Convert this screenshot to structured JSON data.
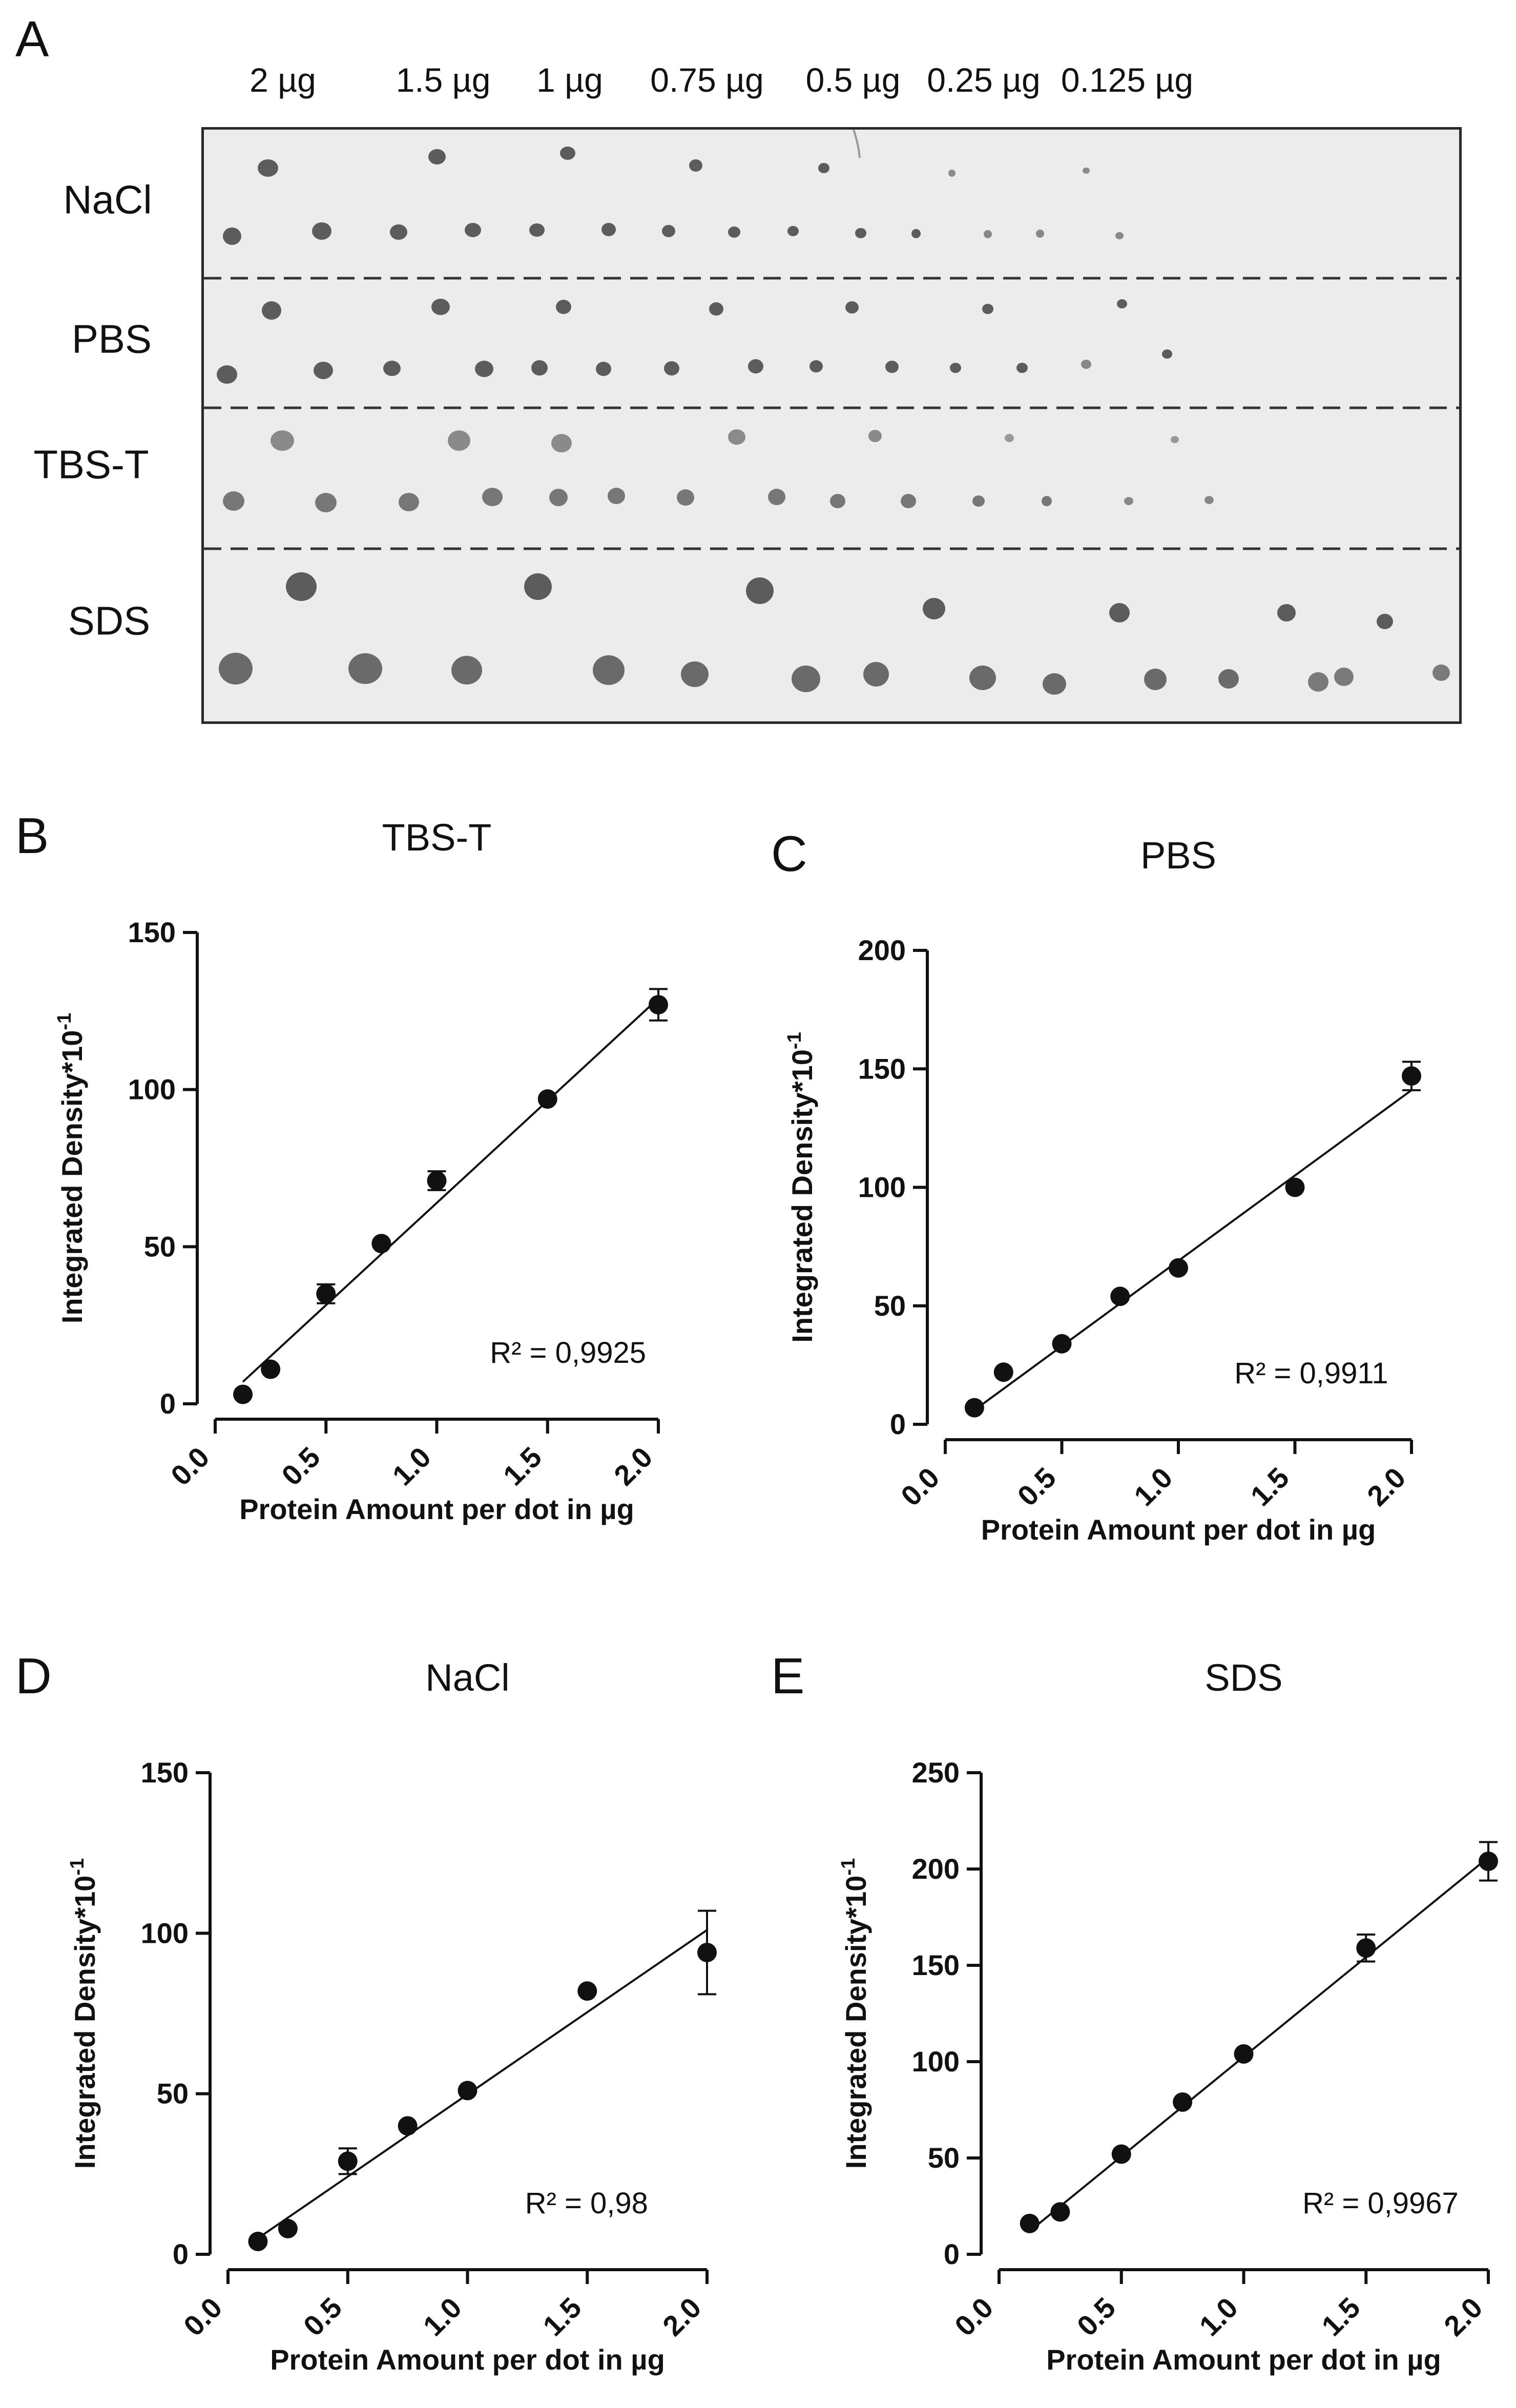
{
  "blot": {
    "panel": "A",
    "amounts": [
      "2 µg",
      "1.5 µg",
      "1 µg",
      "0.75 µg",
      "0.5 µg",
      "0.25 µg",
      "0.125 µg"
    ],
    "rows": [
      "NaCl",
      "PBS",
      "TBS-T",
      "SDS"
    ],
    "colors": {
      "background": "#ececec",
      "dot": "#5a5a5a",
      "divider": "#333333"
    }
  },
  "chart_data": [
    {
      "type": "scatter",
      "panel": "B",
      "title": "TBS-T",
      "xlabel": "Protein Amount per dot in µg",
      "ylabel": "Integrated Density*10",
      "ylabel_sup": "-1",
      "xlim": [
        0,
        2
      ],
      "ylim": [
        0,
        150
      ],
      "xticks": [
        "0.0",
        "0.5",
        "1.0",
        "1.5",
        "2.0"
      ],
      "yticks": [
        "0",
        "50",
        "100",
        "150"
      ],
      "x": [
        0.125,
        0.25,
        0.5,
        0.75,
        1.0,
        1.5,
        2.0
      ],
      "y": [
        3,
        11,
        35,
        51,
        71,
        97,
        127
      ],
      "error": [
        0,
        0,
        3,
        0,
        3,
        0,
        5
      ],
      "fit": {
        "x": [
          0.125,
          2.0
        ],
        "y": [
          7,
          129
        ]
      },
      "annotation": "R² = 0,9925"
    },
    {
      "type": "scatter",
      "panel": "C",
      "title": "PBS",
      "xlabel": "Protein Amount per dot in µg",
      "ylabel": "Integrated Density*10",
      "ylabel_sup": "-1",
      "xlim": [
        0,
        2
      ],
      "ylim": [
        0,
        200
      ],
      "xticks": [
        "0.0",
        "0.5",
        "1.0",
        "1.5",
        "2.0"
      ],
      "yticks": [
        "0",
        "50",
        "100",
        "150",
        "200"
      ],
      "x": [
        0.125,
        0.25,
        0.5,
        0.75,
        1.0,
        1.5,
        2.0
      ],
      "y": [
        7,
        22,
        34,
        54,
        66,
        100,
        147
      ],
      "error": [
        0,
        0,
        0,
        0,
        0,
        0,
        6
      ],
      "fit": {
        "x": [
          0.125,
          2.0
        ],
        "y": [
          6,
          141
        ]
      },
      "annotation": "R² = 0,9911"
    },
    {
      "type": "scatter",
      "panel": "D",
      "title": "NaCl",
      "xlabel": "Protein Amount per dot in µg",
      "ylabel": "Integrated Density*10",
      "ylabel_sup": "-1",
      "xlim": [
        0,
        2
      ],
      "ylim": [
        0,
        150
      ],
      "xticks": [
        "0.0",
        "0.5",
        "1.0",
        "1.5",
        "2.0"
      ],
      "yticks": [
        "0",
        "50",
        "100",
        "150"
      ],
      "x": [
        0.125,
        0.25,
        0.5,
        0.75,
        1.0,
        1.5,
        2.0
      ],
      "y": [
        4,
        8,
        29,
        40,
        51,
        82,
        94
      ],
      "error": [
        0,
        0,
        4,
        0,
        0,
        0,
        13
      ],
      "fit": {
        "x": [
          0.125,
          2.0
        ],
        "y": [
          5,
          101
        ]
      },
      "annotation": "R² = 0,98"
    },
    {
      "type": "scatter",
      "panel": "E",
      "title": "SDS",
      "xlabel": "Protein Amount per dot in µg",
      "ylabel": "Integrated Density*10",
      "ylabel_sup": "-1",
      "xlim": [
        0,
        2
      ],
      "ylim": [
        0,
        250
      ],
      "xticks": [
        "0.0",
        "0.5",
        "1.0",
        "1.5",
        "2.0"
      ],
      "yticks": [
        "0",
        "50",
        "100",
        "150",
        "200",
        "250"
      ],
      "x": [
        0.125,
        0.25,
        0.5,
        0.75,
        1.0,
        1.5,
        2.0
      ],
      "y": [
        16,
        22,
        52,
        79,
        104,
        159,
        204
      ],
      "error": [
        0,
        0,
        0,
        0,
        0,
        7,
        10
      ],
      "fit": {
        "x": [
          0.125,
          2.0
        ],
        "y": [
          12,
          206
        ]
      },
      "annotation": "R² = 0,9967"
    }
  ]
}
